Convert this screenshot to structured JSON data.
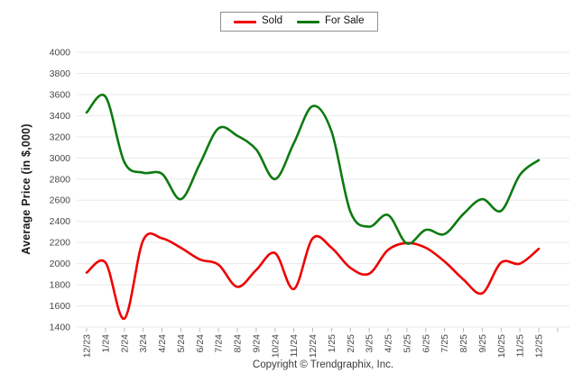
{
  "chart_data": {
    "type": "line",
    "title": "",
    "categories": [
      "12/23",
      "1/24",
      "2/24",
      "3/24",
      "4/24",
      "5/24",
      "6/24",
      "7/24",
      "8/24",
      "9/24",
      "10/24",
      "11/24",
      "12/24",
      "1/25",
      "2/25",
      "3/25",
      "4/25",
      "5/25",
      "6/25",
      "7/25",
      "8/25",
      "9/25",
      "10/25",
      "11/25",
      "12/25"
    ],
    "series": [
      {
        "name": "Sold",
        "color": "#ee0000",
        "values": [
          1915,
          2010,
          1480,
          2220,
          2240,
          2150,
          2040,
          1990,
          1780,
          1940,
          2100,
          1760,
          2240,
          2150,
          1960,
          1905,
          2130,
          2195,
          2150,
          2020,
          1850,
          1720,
          2010,
          2000,
          2140
        ]
      },
      {
        "name": "For Sale",
        "color": "#0c7a10",
        "values": [
          3430,
          3580,
          2960,
          2860,
          2850,
          2610,
          2940,
          3280,
          3210,
          3080,
          2800,
          3140,
          3490,
          3250,
          2490,
          2350,
          2460,
          2190,
          2320,
          2280,
          2470,
          2610,
          2500,
          2840,
          2980
        ]
      }
    ],
    "xlabel": "",
    "ylabel": "Average Price (in $,000)",
    "ylim": [
      1400,
      4000
    ],
    "ytick_step": 200,
    "grid": "horizontal",
    "legend_position": "top-center",
    "smooth": true
  },
  "footer": {
    "copyright": "Copyright © Trendgraphix, Inc."
  },
  "colors": {
    "gridline": "#e9e9e9",
    "tick": "#b9b9b9",
    "axis_text": "#48484d"
  }
}
